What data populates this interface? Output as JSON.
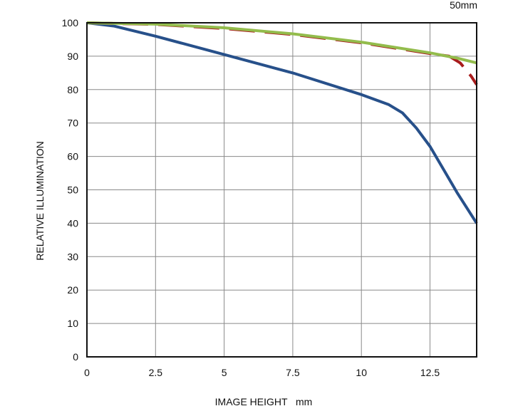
{
  "header": {
    "focal_length": "50mm"
  },
  "chart_data": {
    "type": "line",
    "xlabel": "IMAGE HEIGHT   mm",
    "ylabel": "RELATIVE ILLUMINATION",
    "xlim": [
      0,
      14.2
    ],
    "ylim": [
      0,
      100
    ],
    "x_ticks": [
      0,
      2.5,
      5,
      7.5,
      10,
      12.5
    ],
    "x_tick_labels": [
      "0",
      "2.5",
      "5",
      "7.5",
      "10",
      "12.5"
    ],
    "y_ticks": [
      0,
      10,
      20,
      30,
      40,
      50,
      60,
      70,
      80,
      90,
      100
    ],
    "y_tick_labels": [
      "0",
      "10",
      "20",
      "30",
      "40",
      "50",
      "60",
      "70",
      "80",
      "90",
      "100"
    ],
    "grid": true,
    "series": [
      {
        "color": "#27508a",
        "style": "solid",
        "points": [
          [
            0,
            100
          ],
          [
            1,
            99
          ],
          [
            2.5,
            96
          ],
          [
            5,
            90.5
          ],
          [
            7.5,
            85
          ],
          [
            10,
            78.5
          ],
          [
            11,
            75.5
          ],
          [
            11.5,
            73
          ],
          [
            12,
            68.5
          ],
          [
            12.5,
            63
          ],
          [
            13,
            56
          ],
          [
            13.5,
            49
          ],
          [
            14.2,
            40
          ]
        ]
      },
      {
        "color": "#a81c1c",
        "style": "dashed",
        "points": [
          [
            0,
            100
          ],
          [
            2.5,
            99.5
          ],
          [
            5,
            98.3
          ],
          [
            7.5,
            96.5
          ],
          [
            10,
            94
          ],
          [
            12.5,
            90.8
          ],
          [
            13.2,
            90
          ],
          [
            13.6,
            88
          ],
          [
            14.0,
            84
          ],
          [
            14.2,
            81.5
          ]
        ]
      },
      {
        "color": "#93bc4c",
        "style": "solid",
        "points": [
          [
            0,
            100
          ],
          [
            2.5,
            99.6
          ],
          [
            5,
            98.5
          ],
          [
            7.5,
            96.7
          ],
          [
            10,
            94.2
          ],
          [
            12.5,
            91
          ],
          [
            13.5,
            89.4
          ],
          [
            14.2,
            88
          ]
        ]
      }
    ]
  }
}
